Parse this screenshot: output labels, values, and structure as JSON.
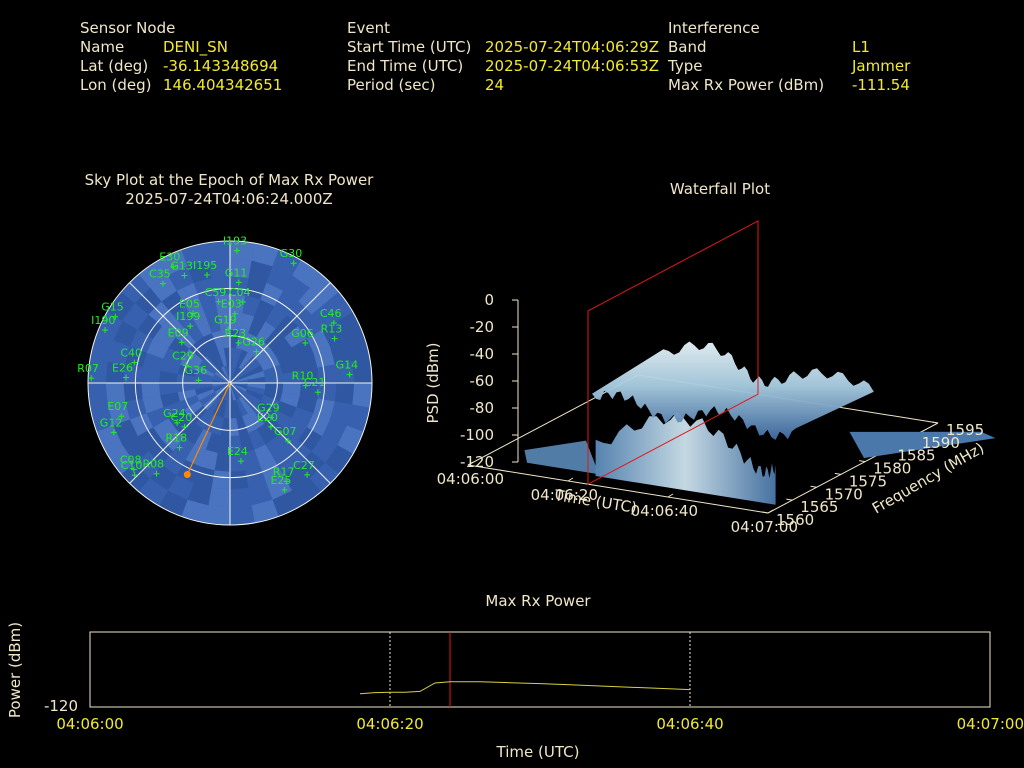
{
  "sensor": {
    "header": "Sensor Node",
    "fields": [
      {
        "label": "Name",
        "value": "DENI_SN"
      },
      {
        "label": "Lat (deg)",
        "value": "-36.143348694"
      },
      {
        "label": "Lon (deg)",
        "value": "146.404342651"
      }
    ]
  },
  "event": {
    "header": "Event",
    "fields": [
      {
        "label": "Start Time (UTC)",
        "value": "2025-07-24T04:06:29Z"
      },
      {
        "label": "End Time (UTC)",
        "value": "2025-07-24T04:06:53Z"
      },
      {
        "label": "Period (sec)",
        "value": "24"
      }
    ]
  },
  "interference": {
    "header": "Interference",
    "fields": [
      {
        "label": "Band",
        "value": "L1"
      },
      {
        "label": "Type",
        "value": "Jammer"
      },
      {
        "label": "Max Rx Power (dBm)",
        "value": "-111.54"
      }
    ]
  },
  "colors": {
    "text": "#f0e6c8",
    "value": "#f2ea2c",
    "satellite": "#22ee22",
    "jammer": "#ff8c00",
    "sky_fill": "#3a64b4",
    "max_line": "#e01818",
    "power_line": "#d8d040"
  },
  "chart_data": [
    {
      "type": "scatter",
      "kind": "polar-sky-plot",
      "title": "Sky Plot at the Epoch of Max Rx Power",
      "subtitle": "2025-07-24T04:06:24.000Z",
      "elevation_rings_deg": [
        0,
        30,
        60
      ],
      "jammer_direction": {
        "azimuth_deg": 205,
        "elevation_deg": 26
      },
      "satellites": [
        {
          "id": "I193",
          "az": 3,
          "el": 6
        },
        {
          "id": "G30",
          "az": 28,
          "el": 4
        },
        {
          "id": "E30",
          "az": 334,
          "el": 8
        },
        {
          "id": "C35",
          "az": 326,
          "el": 14
        },
        {
          "id": "G13",
          "az": 337,
          "el": 16
        },
        {
          "id": "I195",
          "az": 348,
          "el": 20
        },
        {
          "id": "G11",
          "az": 5,
          "el": 26
        },
        {
          "id": "C59",
          "az": 352,
          "el": 38
        },
        {
          "id": "C04",
          "az": 9,
          "el": 38
        },
        {
          "id": "E05",
          "az": 332,
          "el": 40
        },
        {
          "id": "E03",
          "az": 4,
          "el": 46
        },
        {
          "id": "I199",
          "az": 325,
          "el": 46
        },
        {
          "id": "C46",
          "az": 60,
          "el": 14
        },
        {
          "id": "R13",
          "az": 67,
          "el": 18
        },
        {
          "id": "G06",
          "az": 62,
          "el": 36
        },
        {
          "id": "G19",
          "az": 358,
          "el": 56
        },
        {
          "id": "G15",
          "az": 300,
          "el": 6
        },
        {
          "id": "I190",
          "az": 293,
          "el": 4
        },
        {
          "id": "C40",
          "az": 282,
          "el": 28
        },
        {
          "id": "E26",
          "az": 273,
          "el": 24
        },
        {
          "id": "E09",
          "az": 310,
          "el": 50
        },
        {
          "id": "R23",
          "az": 12,
          "el": 64
        },
        {
          "id": "C29",
          "az": 292,
          "el": 60
        },
        {
          "id": "G26",
          "az": 40,
          "el": 64
        },
        {
          "id": "G14",
          "az": 86,
          "el": 14
        },
        {
          "id": "R07",
          "az": 272,
          "el": 2
        },
        {
          "id": "G36",
          "az": 275,
          "el": 70
        },
        {
          "id": "R10",
          "az": 92,
          "el": 42
        },
        {
          "id": "C21",
          "az": 96,
          "el": 34
        },
        {
          "id": "E07",
          "az": 253,
          "el": 18
        },
        {
          "id": "G24",
          "az": 233,
          "el": 48
        },
        {
          "id": "G12",
          "az": 247,
          "el": 10
        },
        {
          "id": "C20",
          "az": 226,
          "el": 50
        },
        {
          "id": "R18",
          "az": 218,
          "el": 38
        },
        {
          "id": "E20",
          "az": 137,
          "el": 52
        },
        {
          "id": "G29",
          "az": 130,
          "el": 56
        },
        {
          "id": "G07",
          "az": 135,
          "el": 38
        },
        {
          "id": "C08",
          "az": 228,
          "el": 8
        },
        {
          "id": "R08",
          "az": 219,
          "el": 16
        },
        {
          "id": "C10",
          "az": 226,
          "el": 6
        },
        {
          "id": "E24",
          "az": 172,
          "el": 40
        },
        {
          "id": "C27",
          "az": 140,
          "el": 14
        },
        {
          "id": "E25",
          "az": 153,
          "el": 14
        },
        {
          "id": "R17",
          "az": 150,
          "el": 18
        }
      ]
    },
    {
      "type": "area",
      "kind": "3d-waterfall",
      "title": "Waterfall Plot",
      "xlabel": "Time (UTC)",
      "ylabel": "Frequency (MHz)",
      "zlabel": "PSD (dBm)",
      "x_ticks": [
        "04:06:00",
        "04:06:20",
        "04:06:40",
        "04:07:00"
      ],
      "y_ticks": [
        "1560",
        "1565",
        "1570",
        "1575",
        "1580",
        "1585",
        "1590",
        "1595"
      ],
      "z_ticks": [
        "0",
        "-20",
        "-40",
        "-60",
        "-80",
        "-100",
        "-120"
      ],
      "zlim": [
        -120,
        0
      ],
      "max_epoch_marker": "04:06:24"
    },
    {
      "type": "line",
      "title": "Max Rx Power",
      "xlabel": "Time (UTC)",
      "ylabel": "Power (dBm)",
      "x_ticks": [
        "04:06:00",
        "04:06:20",
        "04:06:40",
        "04:07:00"
      ],
      "y_tick": "-120",
      "event_markers": [
        "04:06:20",
        "04:06:40"
      ],
      "max_marker": "04:06:24",
      "series": [
        {
          "x": [
            "04:06:18",
            "04:06:19",
            "04:06:20",
            "04:06:21",
            "04:06:22",
            "04:06:23",
            "04:06:24",
            "04:06:26",
            "04:06:28",
            "04:06:30",
            "04:06:32",
            "04:06:34",
            "04:06:36",
            "04:06:38",
            "04:06:40"
          ],
          "values": [
            -115.6,
            -115.2,
            -115.1,
            -115.1,
            -114.8,
            -112.0,
            -111.6,
            -111.6,
            -111.9,
            -112.2,
            -112.6,
            -113.0,
            -113.4,
            -113.8,
            -114.2
          ]
        }
      ]
    }
  ]
}
